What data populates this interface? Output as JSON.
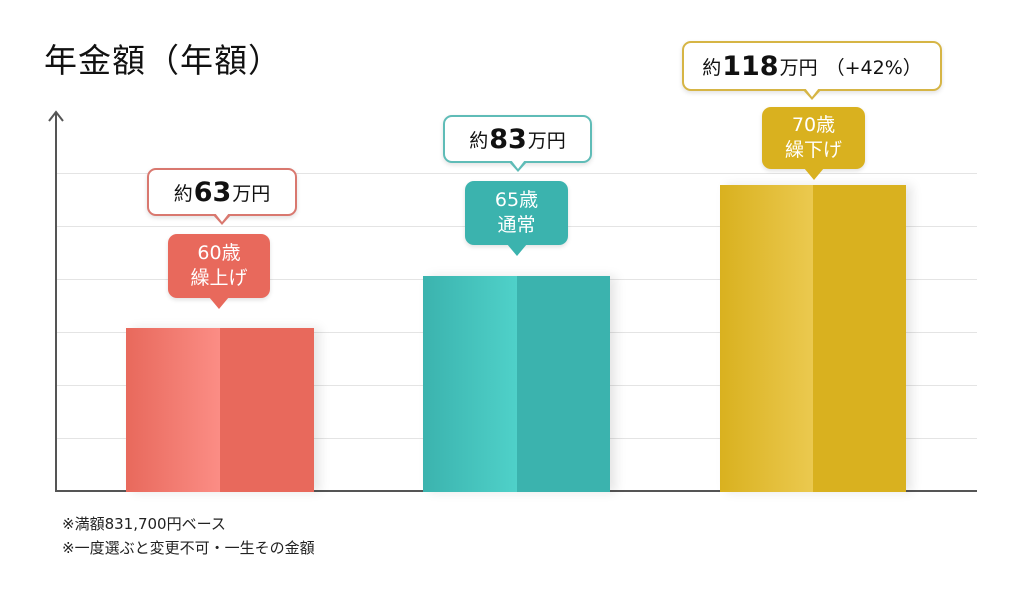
{
  "title": "年金額（年額）",
  "chart_data": {
    "type": "bar",
    "title": "年金額（年額）",
    "xlabel": "",
    "ylabel": "",
    "categories": [
      "60歳 繰上げ",
      "65歳 通常",
      "70歳 繰下げ"
    ],
    "values": [
      63,
      83,
      118
    ],
    "unit": "万円",
    "grid": true,
    "legend": null,
    "bars": [
      {
        "age": "60歳",
        "type": "繰上げ",
        "amount_prefix": "約",
        "amount_number": "63",
        "amount_unit": "万円",
        "amount_extra": "",
        "value": 63,
        "color_light": "#fb8d85",
        "color_dark": "#e8695c",
        "border_color": "#d9786f"
      },
      {
        "age": "65歳",
        "type": "通常",
        "amount_prefix": "約",
        "amount_number": "83",
        "amount_unit": "万円",
        "amount_extra": "",
        "value": 83,
        "color_light": "#4fd1c9",
        "color_dark": "#3bb3ae",
        "border_color": "#5fbcb7"
      },
      {
        "age": "70歳",
        "type": "繰下げ",
        "amount_prefix": "約",
        "amount_number": "118",
        "amount_unit": "万円",
        "amount_extra": "（+42%）",
        "value": 118,
        "color_light": "#ebc94f",
        "color_dark": "#d9b11f",
        "border_color": "#d6b545"
      }
    ]
  },
  "notes": [
    "※満額831,700円ベース",
    "※一度選ぶと変更不可・一生その金額"
  ]
}
